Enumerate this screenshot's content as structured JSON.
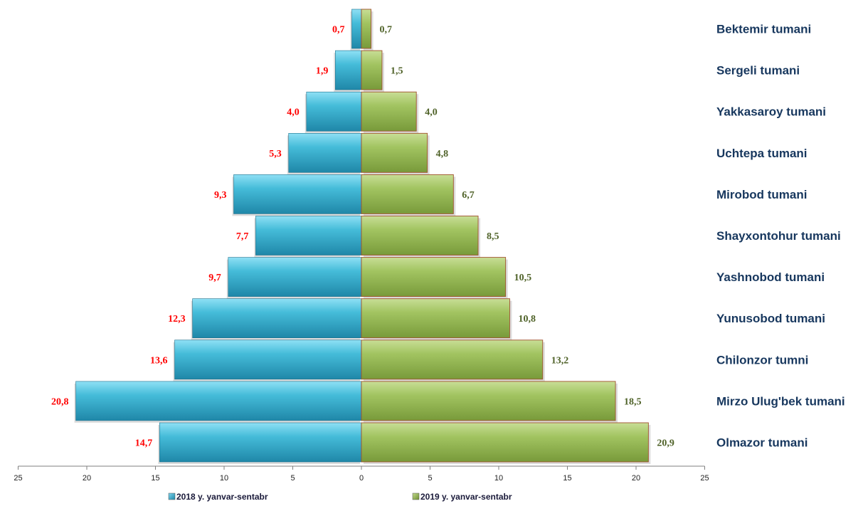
{
  "chart_data": {
    "type": "bar",
    "orientation": "horizontal",
    "layout": "butterfly",
    "categories": [
      "Bektemir tumani",
      "Sergeli tumani",
      "Yakkasaroy tumani",
      "Uchtepa tumani",
      "Mirobod tumani",
      "Shayxontohur tumani",
      "Yashnobod tumani",
      "Yunusobod tumani",
      "Chilonzor tumni",
      "Mirzo Ulug'bek tumani",
      "Olmazor tumani"
    ],
    "series": [
      {
        "name": "2018 y. yanvar-sentabr",
        "side": "left",
        "color": "#3FB7D6",
        "label_color": "#FF0000",
        "values": [
          0.7,
          1.9,
          4.0,
          5.3,
          9.3,
          7.7,
          9.7,
          12.3,
          13.6,
          20.8,
          14.7
        ],
        "labels": [
          "0,7",
          "1,9",
          "4,0",
          "5,3",
          "9,3",
          "7,7",
          "9,7",
          "12,3",
          "13,6",
          "20,8",
          "14,7"
        ]
      },
      {
        "name": "2019 y. yanvar-sentabr",
        "side": "right",
        "color": "#9BBB59",
        "label_color": "#4F6228",
        "values": [
          0.7,
          1.5,
          4.0,
          4.8,
          6.7,
          8.5,
          10.5,
          10.8,
          13.2,
          18.5,
          20.9
        ],
        "labels": [
          "0,7",
          "1,5",
          "4,0",
          "4,8",
          "6,7",
          "8,5",
          "10,5",
          "10,8",
          "13,2",
          "18,5",
          "20,9"
        ]
      }
    ],
    "x_ticks": [
      25,
      20,
      15,
      10,
      5,
      0,
      5,
      10,
      15,
      20,
      25
    ],
    "xlim": [
      -25,
      25
    ],
    "category_label_color": "#17375E",
    "legend_position": "bottom",
    "grid": false
  }
}
